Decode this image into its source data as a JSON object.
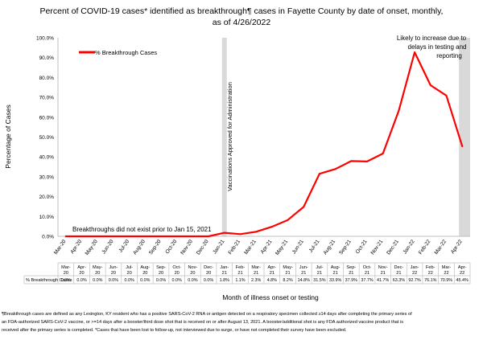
{
  "chart_data": {
    "type": "line",
    "title_line1": "Percent of COVID-19 cases* identified as breakthrough¶ cases in Fayette County by date of onset, monthly,",
    "title_line2": "as of 4/26/2022",
    "xlabel": "Month of illness onset or testing",
    "ylabel": "Percentage of Cases",
    "ylim": [
      0,
      100
    ],
    "y_ticks": [
      "0.0%",
      "10.0%",
      "20.0%",
      "30.0%",
      "40.0%",
      "50.0%",
      "60.0%",
      "70.0%",
      "80.0%",
      "90.0%",
      "100.0%"
    ],
    "grid": false,
    "legend_position": "top-left",
    "categories": [
      "Mar-20",
      "Apr-20",
      "May-20",
      "Jun-20",
      "Jul-20",
      "Aug-20",
      "Sep-20",
      "Oct-20",
      "Nov-20",
      "Dec-20",
      "Jan-21",
      "Feb-21",
      "Mar-21",
      "Apr-21",
      "May-21",
      "Jun-21",
      "Jul-21",
      "Aug-21",
      "Sep-21",
      "Oct-21",
      "Nov-21",
      "Dec-21",
      "Jan-22",
      "Feb-22",
      "Mar-22",
      "Apr-22"
    ],
    "table_categories": [
      [
        "Mar-",
        "20"
      ],
      [
        "Apr-",
        "20"
      ],
      [
        "May-",
        "20"
      ],
      [
        "Jun-",
        "20"
      ],
      [
        "Jul-",
        "20"
      ],
      [
        "Aug-",
        "20"
      ],
      [
        "Sep-",
        "20"
      ],
      [
        "Oct-",
        "20"
      ],
      [
        "Nov-",
        "20"
      ],
      [
        "Dec-",
        "20"
      ],
      [
        "Jan-",
        "21"
      ],
      [
        "Feb-",
        "21"
      ],
      [
        "Mar-",
        "21"
      ],
      [
        "Apr-",
        "21"
      ],
      [
        "May-",
        "21"
      ],
      [
        "Jun-",
        "21"
      ],
      [
        "Jul-",
        "21"
      ],
      [
        "Aug-",
        "21"
      ],
      [
        "Sep-",
        "21"
      ],
      [
        "Oct-",
        "21"
      ],
      [
        "Nov-",
        "21"
      ],
      [
        "Dec-",
        "21"
      ],
      [
        "Jan-",
        "22"
      ],
      [
        "Feb-",
        "22"
      ],
      [
        "Mar-",
        "22"
      ],
      [
        "Apr-",
        "22"
      ]
    ],
    "series": [
      {
        "name": "% Breakthrough Cases",
        "color": "#ff0000",
        "values": [
          0.0,
          0.0,
          0.0,
          0.0,
          0.0,
          0.0,
          0.0,
          0.0,
          0.0,
          0.0,
          1.8,
          1.1,
          2.3,
          4.8,
          8.2,
          14.8,
          31.5,
          33.9,
          37.9,
          37.7,
          41.7,
          63.3,
          92.7,
          76.1,
          70.9,
          45.4
        ],
        "labels": [
          "0.0%",
          "0.0%",
          "0.0%",
          "0.0%",
          "0.0%",
          "0.0%",
          "0.0%",
          "0.0%",
          "0.0%",
          "0.0%",
          "1.8%",
          "1.1%",
          "2.3%",
          "4.8%",
          "8.2%",
          "14.8%",
          "31.5%",
          "33.9%",
          "37.9%",
          "37.7%",
          "41.7%",
          "63.3%",
          "92.7%",
          "76.1%",
          "70.9%",
          "45.4%"
        ]
      }
    ],
    "shaded_regions": [
      {
        "start": "Jan-21",
        "end": "Jan-21",
        "color": "#d9d9d9"
      },
      {
        "start": "Apr-22",
        "end": "Apr-22",
        "color": "#d9d9d9"
      }
    ],
    "annotations": {
      "vaccination": "Vaccinations Approved for Administration",
      "no_breakthrough": "Breakthroughs did not exist prior to Jan 15, 2021",
      "likely_increase": [
        "Likely to increase due to",
        "delays in testing and",
        "reporting"
      ]
    },
    "footnotes": [
      "¶Breakthrough cases are defined as any Lexington, KY resident who has a positive SARS-CoV-2 RNA or antigen detected on a respiratory specimen collected ≥14 days after completing the primary series of",
      "an FDA-authorized SARS-CoV-2 vaccine, or >=14 days after a booster/third dose shot that is received on or after August 13, 2021.  A booster/additional shot is any FDA authorized vaccine product that is",
      "received after the primary series is completed. *Cases that have been lost to follow-up, not interviewed due to surge, or have not completed their survey have been excluded."
    ]
  }
}
